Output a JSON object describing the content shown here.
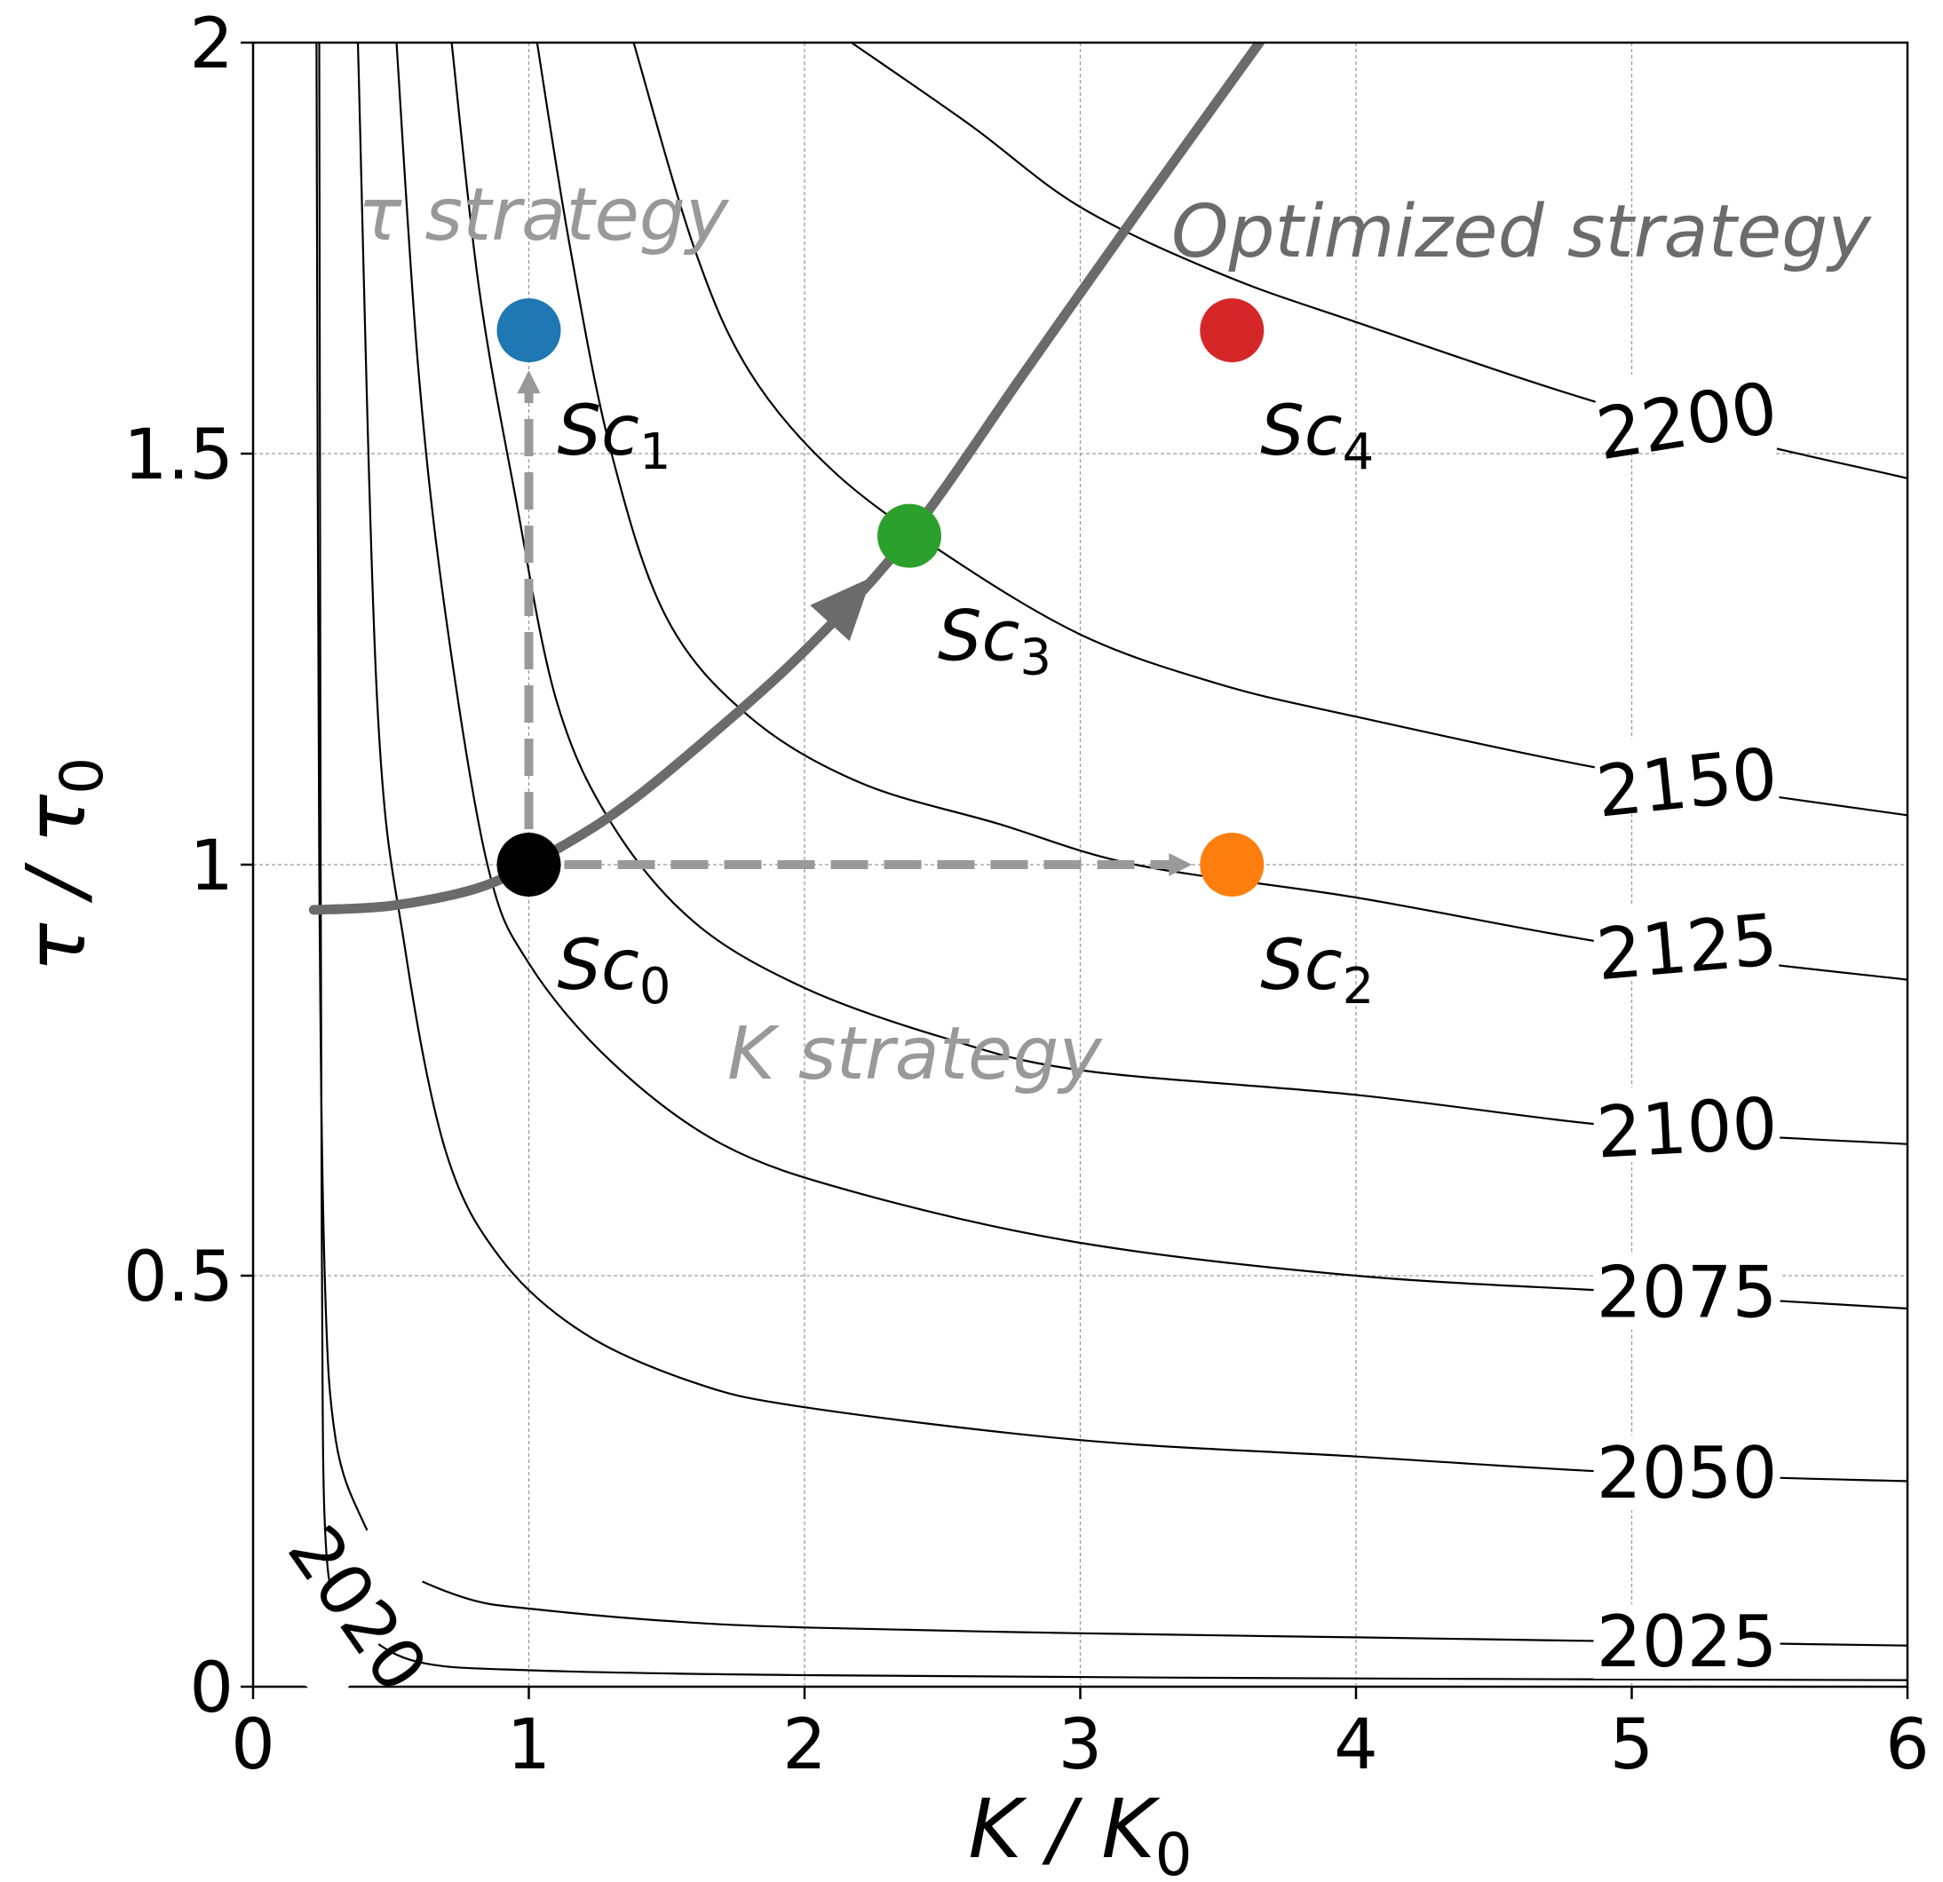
{
  "chart_data": {
    "type": "contour",
    "title": "",
    "xlabel": {
      "base": "K / K",
      "sub": "0"
    },
    "ylabel": {
      "base": "τ / τ",
      "sub": "0"
    },
    "xlim": [
      0,
      6
    ],
    "ylim": [
      0,
      2
    ],
    "xticks": [
      {
        "value": 0,
        "label": "0"
      },
      {
        "value": 1,
        "label": "1"
      },
      {
        "value": 2,
        "label": "2"
      },
      {
        "value": 3,
        "label": "3"
      },
      {
        "value": 4,
        "label": "4"
      },
      {
        "value": 5,
        "label": "5"
      },
      {
        "value": 6,
        "label": "6"
      }
    ],
    "yticks": [
      {
        "value": 0,
        "label": "0"
      },
      {
        "value": 0.5,
        "label": "0.5"
      },
      {
        "value": 1,
        "label": "1"
      },
      {
        "value": 1.5,
        "label": "1.5"
      },
      {
        "value": 2,
        "label": "2"
      }
    ],
    "grid": true,
    "contours": [
      {
        "label": "2020",
        "label_at": {
          "x": 0.38,
          "y": 0.095,
          "angle_deg": 55
        },
        "points": [
          [
            0.24,
            2.0
          ],
          [
            0.245,
            1.0
          ],
          [
            0.25,
            0.5
          ],
          [
            0.26,
            0.2
          ],
          [
            0.3,
            0.1
          ],
          [
            0.4,
            0.065
          ],
          [
            0.6,
            0.03
          ],
          [
            1.0,
            0.02
          ],
          [
            2.0,
            0.014
          ],
          [
            4.0,
            0.01
          ],
          [
            6.0,
            0.008
          ]
        ]
      },
      {
        "label": "2025",
        "label_at": {
          "x": 5.2,
          "y": 0.055,
          "angle_deg": 0
        },
        "points": [
          [
            0.23,
            2.0
          ],
          [
            0.24,
            1.0
          ],
          [
            0.26,
            0.5
          ],
          [
            0.3,
            0.3
          ],
          [
            0.4,
            0.2
          ],
          [
            0.5,
            0.15
          ],
          [
            0.6,
            0.13
          ],
          [
            0.8,
            0.105
          ],
          [
            1.0,
            0.095
          ],
          [
            1.5,
            0.08
          ],
          [
            2.0,
            0.072
          ],
          [
            3.0,
            0.065
          ],
          [
            4.0,
            0.06
          ],
          [
            5.0,
            0.055
          ],
          [
            6.0,
            0.05
          ]
        ]
      },
      {
        "label": "2050",
        "label_at": {
          "x": 5.2,
          "y": 0.26,
          "angle_deg": 0
        },
        "points": [
          [
            0.38,
            2.0
          ],
          [
            0.45,
            1.2
          ],
          [
            0.55,
            0.9
          ],
          [
            0.7,
            0.65
          ],
          [
            0.9,
            0.52
          ],
          [
            1.2,
            0.43
          ],
          [
            1.6,
            0.37
          ],
          [
            2.0,
            0.34
          ],
          [
            3.0,
            0.3
          ],
          [
            4.0,
            0.28
          ],
          [
            5.0,
            0.26
          ],
          [
            6.0,
            0.25
          ]
        ]
      },
      {
        "label": "2075",
        "label_at": {
          "x": 5.2,
          "y": 0.48,
          "angle_deg": 0
        },
        "points": [
          [
            0.52,
            2.0
          ],
          [
            0.6,
            1.6
          ],
          [
            0.7,
            1.3
          ],
          [
            0.85,
            1.0
          ],
          [
            1.0,
            0.88
          ],
          [
            1.3,
            0.76
          ],
          [
            1.7,
            0.66
          ],
          [
            2.2,
            0.6
          ],
          [
            3.0,
            0.54
          ],
          [
            4.0,
            0.5
          ],
          [
            5.0,
            0.48
          ],
          [
            6.0,
            0.46
          ]
        ]
      },
      {
        "label": "2100",
        "label_at": {
          "x": 5.2,
          "y": 0.68,
          "angle_deg": -3
        },
        "points": [
          [
            0.72,
            2.0
          ],
          [
            0.82,
            1.7
          ],
          [
            0.95,
            1.45
          ],
          [
            1.1,
            1.2
          ],
          [
            1.3,
            1.05
          ],
          [
            1.6,
            0.93
          ],
          [
            2.0,
            0.85
          ],
          [
            2.5,
            0.79
          ],
          [
            3.0,
            0.75
          ],
          [
            4.0,
            0.72
          ],
          [
            5.0,
            0.68
          ],
          [
            6.0,
            0.66
          ]
        ]
      },
      {
        "label": "2125",
        "label_at": {
          "x": 5.2,
          "y": 0.9,
          "angle_deg": -5
        },
        "points": [
          [
            1.03,
            2.0
          ],
          [
            1.15,
            1.75
          ],
          [
            1.3,
            1.5
          ],
          [
            1.5,
            1.3
          ],
          [
            1.8,
            1.18
          ],
          [
            2.2,
            1.1
          ],
          [
            2.7,
            1.05
          ],
          [
            3.2,
            1.0
          ],
          [
            4.0,
            0.96
          ],
          [
            5.0,
            0.9
          ],
          [
            6.0,
            0.86
          ]
        ]
      },
      {
        "label": "2150",
        "label_at": {
          "x": 5.2,
          "y": 1.1,
          "angle_deg": -6
        },
        "points": [
          [
            1.38,
            2.0
          ],
          [
            1.6,
            1.75
          ],
          [
            1.8,
            1.6
          ],
          [
            2.1,
            1.48
          ],
          [
            2.5,
            1.38
          ],
          [
            3.0,
            1.28
          ],
          [
            3.5,
            1.22
          ],
          [
            4.0,
            1.18
          ],
          [
            5.0,
            1.11
          ],
          [
            6.0,
            1.06
          ]
        ]
      },
      {
        "label": "2200",
        "label_at": {
          "x": 5.2,
          "y": 1.54,
          "angle_deg": -9
        },
        "points": [
          [
            2.17,
            2.0
          ],
          [
            2.6,
            1.9
          ],
          [
            3.0,
            1.8
          ],
          [
            3.5,
            1.72
          ],
          [
            4.0,
            1.66
          ],
          [
            5.0,
            1.55
          ],
          [
            6.0,
            1.47
          ]
        ]
      }
    ],
    "optimized_path": {
      "label": "Optimized strategy",
      "color": "#6b6b6b",
      "points": [
        [
          0.22,
          0.945
        ],
        [
          0.5,
          0.95
        ],
        [
          0.8,
          0.97
        ],
        [
          1.0,
          1.0
        ],
        [
          1.3,
          1.06
        ],
        [
          1.6,
          1.14
        ],
        [
          2.0,
          1.26
        ],
        [
          2.38,
          1.4
        ],
        [
          2.8,
          1.6
        ],
        [
          3.2,
          1.79
        ],
        [
          3.65,
          2.0
        ]
      ],
      "arrow_at": 2.2
    },
    "tau_strategy": {
      "label": "τ strategy",
      "color": "#999999",
      "from": [
        1.0,
        1.0
      ],
      "to": [
        1.0,
        1.65
      ]
    },
    "k_strategy": {
      "label": "K strategy",
      "color": "#999999",
      "from": [
        1.0,
        1.0
      ],
      "to": [
        3.55,
        1.0
      ]
    },
    "scenarios": [
      {
        "base": "Sc",
        "sub": "0",
        "x": 1.0,
        "y": 1.0,
        "color": "#000000"
      },
      {
        "base": "Sc",
        "sub": "1",
        "x": 1.0,
        "y": 1.65,
        "color": "#1f77b4"
      },
      {
        "base": "Sc",
        "sub": "2",
        "x": 3.55,
        "y": 1.0,
        "color": "#ff7f0e"
      },
      {
        "base": "Sc",
        "sub": "3",
        "x": 2.38,
        "y": 1.4,
        "color": "#2ca02c"
      },
      {
        "base": "Sc",
        "sub": "4",
        "x": 3.55,
        "y": 1.65,
        "color": "#d62728"
      }
    ]
  }
}
